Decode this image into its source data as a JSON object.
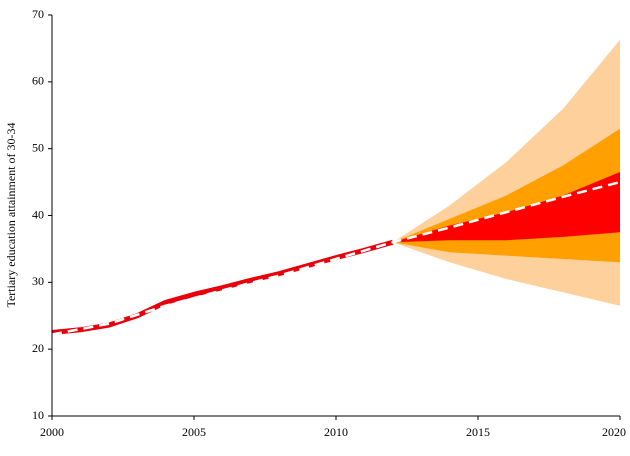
{
  "chart_data": {
    "type": "fan",
    "y_label": "Tertiary education attainment of 30-34",
    "xlim": [
      2000,
      2020
    ],
    "xticks": [
      2000,
      2005,
      2010,
      2015,
      2020
    ],
    "ylim": [
      10,
      70
    ],
    "yticks": [
      10,
      20,
      30,
      40,
      50,
      60,
      70
    ],
    "fan_x": [
      2012,
      2014,
      2016,
      2018,
      2020
    ],
    "bands": [
      {
        "color": "#fdd09c",
        "high": [
          36,
          41.5,
          48,
          56,
          66.3
        ],
        "low": [
          36,
          33,
          30.5,
          28.5,
          26.5
        ]
      },
      {
        "color": "#ff9f00",
        "high": [
          36,
          39.5,
          43,
          47.5,
          53
        ],
        "low": [
          36,
          34.5,
          34,
          33.5,
          33
        ]
      },
      {
        "color": "#ff0000",
        "high": [
          36,
          38.5,
          40.5,
          43,
          46.5
        ],
        "low": [
          36,
          36.3,
          36.3,
          36.8,
          37.5
        ]
      }
    ],
    "series": [
      {
        "color": "#e8000b",
        "style": "solid",
        "x": [
          2000,
          2001,
          2002,
          2003,
          2004,
          2005,
          2006,
          2007,
          2008,
          2009,
          2010,
          2011,
          2012
        ],
        "values": [
          22.5,
          22.9,
          23.6,
          25.0,
          27.0,
          28.2,
          29.2,
          30.3,
          31.3,
          32.5,
          33.7,
          34.8,
          36.0
        ]
      },
      {
        "color": "#ffffff",
        "style": "dashed",
        "x": [
          2000,
          2002,
          2004,
          2006,
          2008,
          2010,
          2012,
          2014,
          2016,
          2018,
          2020
        ],
        "values": [
          22.2,
          23.8,
          26.5,
          28.8,
          31.0,
          33.5,
          36.0,
          38.2,
          40.5,
          42.8,
          45.0
        ]
      }
    ]
  }
}
